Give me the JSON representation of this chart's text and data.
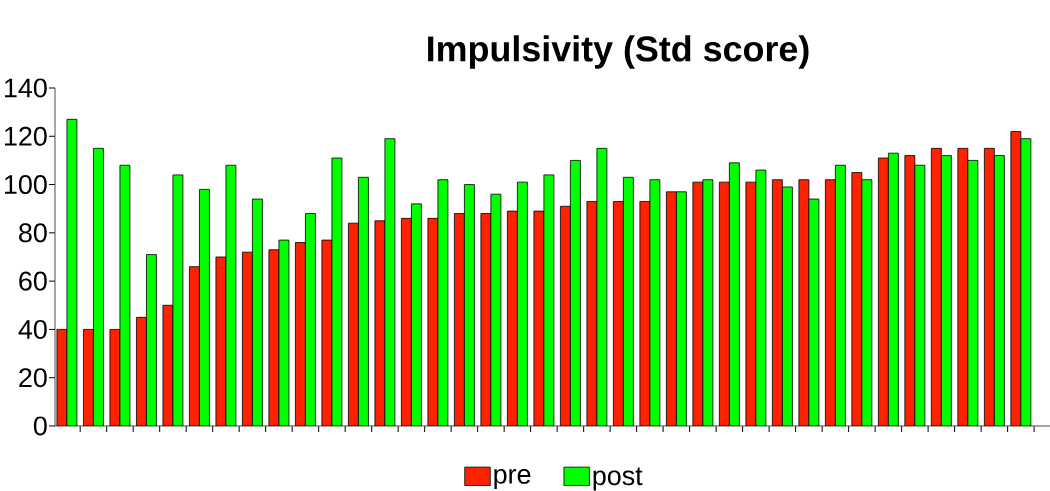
{
  "chart_data": {
    "type": "bar",
    "title": "Impulsivity (Std score)",
    "categories": [
      null,
      null,
      null,
      null,
      null,
      null,
      null,
      null,
      null,
      null,
      null,
      null,
      null,
      null,
      null,
      null,
      null,
      null,
      null,
      null,
      null,
      null,
      null,
      null,
      null,
      null,
      null,
      null,
      null,
      null,
      null,
      null,
      null,
      null,
      null,
      null,
      null
    ],
    "series": [
      {
        "name": "pre",
        "color": "#ff2200",
        "values": [
          40,
          40,
          40,
          45,
          50,
          66,
          70,
          72,
          73,
          76,
          77,
          84,
          85,
          86,
          86,
          88,
          88,
          89,
          89,
          91,
          93,
          93,
          93,
          97,
          101,
          101,
          101,
          102,
          102,
          102,
          105,
          111,
          112,
          115,
          115,
          115,
          122
        ]
      },
      {
        "name": "post",
        "color": "#00ff00",
        "values": [
          127,
          115,
          108,
          71,
          104,
          98,
          108,
          94,
          77,
          88,
          111,
          103,
          119,
          92,
          102,
          100,
          96,
          101,
          104,
          110,
          115,
          103,
          102,
          97,
          102,
          109,
          106,
          99,
          94,
          108,
          102,
          113,
          108,
          112,
          110,
          112,
          119
        ]
      }
    ],
    "ylim": [
      0,
      140
    ],
    "yticks": [
      0,
      20,
      40,
      60,
      80,
      100,
      120,
      140
    ],
    "legend": "bottom"
  }
}
